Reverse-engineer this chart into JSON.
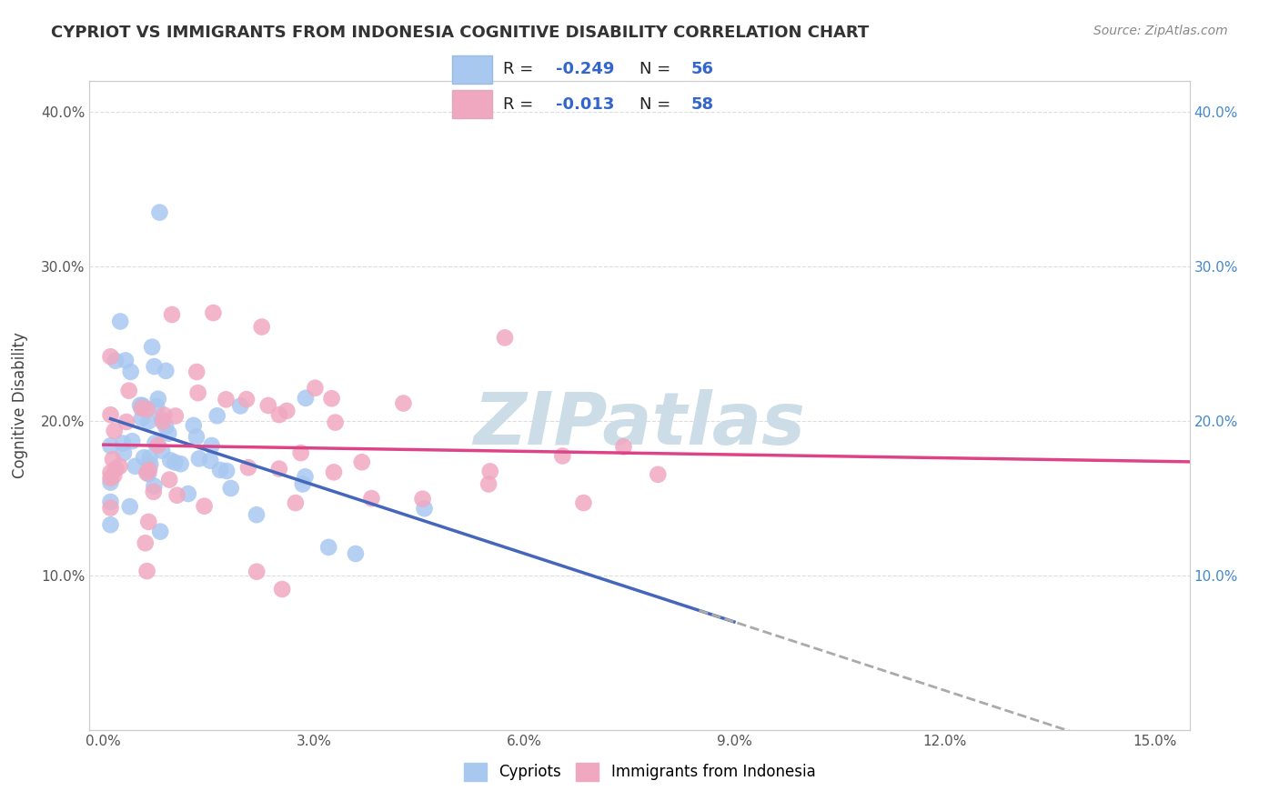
{
  "title": "CYPRIOT VS IMMIGRANTS FROM INDONESIA COGNITIVE DISABILITY CORRELATION CHART",
  "source": "Source: ZipAtlas.com",
  "ylabel": "Cognitive Disability",
  "xlim": [
    -0.002,
    0.155
  ],
  "ylim": [
    0.0,
    0.42
  ],
  "xticks": [
    0.0,
    0.03,
    0.06,
    0.09,
    0.12,
    0.15
  ],
  "xtick_labels": [
    "0.0%",
    "3.0%",
    "6.0%",
    "9.0%",
    "12.0%",
    "15.0%"
  ],
  "yticks": [
    0.0,
    0.1,
    0.2,
    0.3,
    0.4
  ],
  "ytick_labels": [
    "",
    "10.0%",
    "20.0%",
    "30.0%",
    "40.0%"
  ],
  "cypriot_color": "#a8c8f0",
  "indonesia_color": "#f0a8c0",
  "cypriot_R": -0.249,
  "cypriot_N": 56,
  "indonesia_R": -0.013,
  "indonesia_N": 58,
  "legend_R_color": "#3366cc",
  "trend_blue_color": "#4466bb",
  "trend_pink_color": "#dd4488",
  "trend_dash_color": "#aaaaaa",
  "watermark_color": "#ccdde8",
  "background_color": "#ffffff"
}
